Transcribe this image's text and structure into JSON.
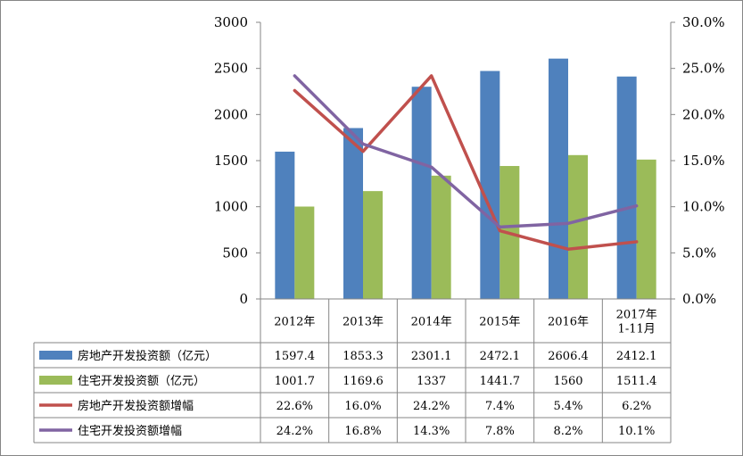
{
  "chart_data": {
    "type": "bar",
    "title": "",
    "categories": [
      "2012年",
      "2013年",
      "2014年",
      "2015年",
      "2016年",
      "2017年 1-11月"
    ],
    "category_lines": [
      [
        "2012年"
      ],
      [
        "2013年"
      ],
      [
        "2014年"
      ],
      [
        "2015年"
      ],
      [
        "2016年"
      ],
      [
        "2017年",
        "1-11月"
      ]
    ],
    "left_axis": {
      "ylim": [
        0,
        3000
      ],
      "ticks": [
        "0",
        "500",
        "1000",
        "1500",
        "2000",
        "2500",
        "3000"
      ],
      "tick_values": [
        0,
        500,
        1000,
        1500,
        2000,
        2500,
        3000
      ]
    },
    "right_axis": {
      "ylim": [
        0,
        30
      ],
      "ticks": [
        "0.0%",
        "5.0%",
        "10.0%",
        "15.0%",
        "20.0%",
        "25.0%",
        "30.0%"
      ],
      "tick_values": [
        0,
        5,
        10,
        15,
        20,
        25,
        30
      ]
    },
    "grid": false,
    "legend": "data-table",
    "series": [
      {
        "name": "房地产开发投资额（亿元）",
        "type": "bar",
        "axis": "left",
        "color": "#4f81bd",
        "values": [
          1597.4,
          1853.3,
          2301.1,
          2472.1,
          2606.4,
          2412.1
        ],
        "labels": [
          "1597.4",
          "1853.3",
          "2301.1",
          "2472.1",
          "2606.4",
          "2412.1"
        ]
      },
      {
        "name": "住宅开发投资额（亿元）",
        "type": "bar",
        "axis": "left",
        "color": "#9bbb59",
        "values": [
          1001.7,
          1169.6,
          1337,
          1441.7,
          1560,
          1511.4
        ],
        "labels": [
          "1001.7",
          "1169.6",
          "1337",
          "1441.7",
          "1560",
          "1511.4"
        ]
      },
      {
        "name": "房地产开发投资额增幅",
        "type": "line",
        "axis": "right",
        "color": "#c0504d",
        "values": [
          22.6,
          16.0,
          24.2,
          7.4,
          5.4,
          6.2
        ],
        "labels": [
          "22.6%",
          "16.0%",
          "24.2%",
          "7.4%",
          "5.4%",
          "6.2%"
        ]
      },
      {
        "name": "住宅开发投资额增幅",
        "type": "line",
        "axis": "right",
        "color": "#8064a2",
        "values": [
          24.2,
          16.8,
          14.3,
          7.8,
          8.2,
          10.1
        ],
        "labels": [
          "24.2%",
          "16.8%",
          "14.3%",
          "7.8%",
          "8.2%",
          "10.1%"
        ]
      }
    ]
  }
}
